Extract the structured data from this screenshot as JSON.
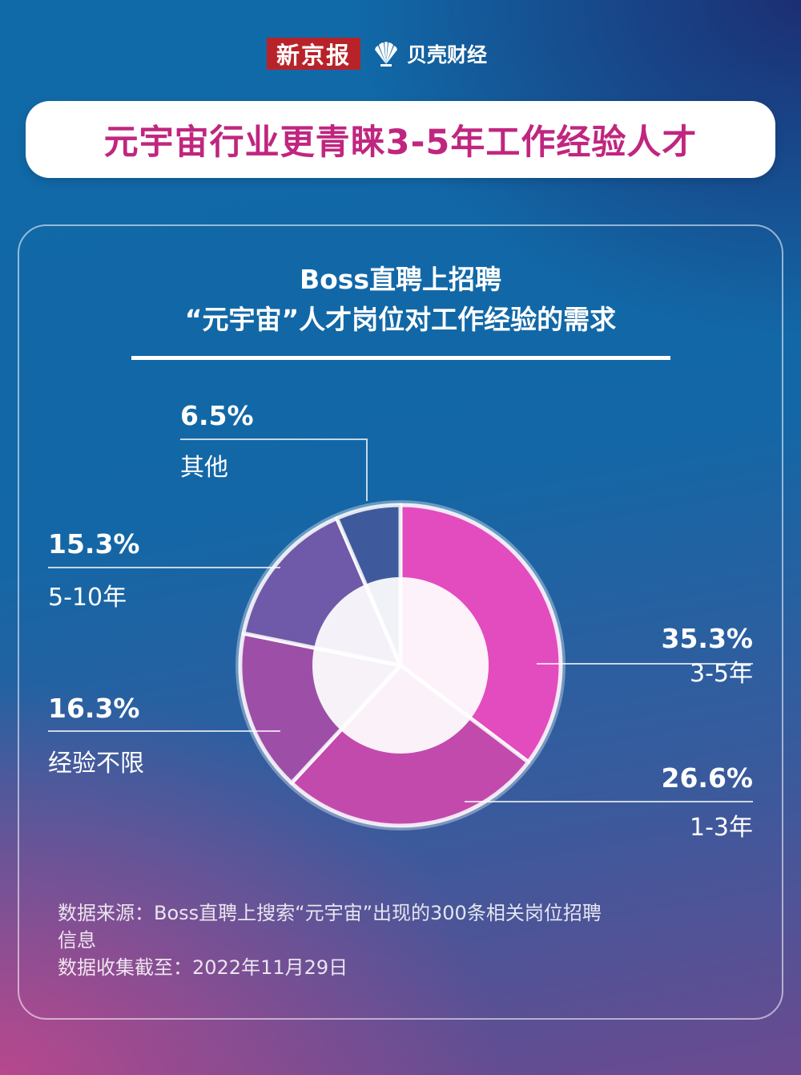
{
  "header": {
    "logo_xjb": "新京报",
    "logo_bk": "贝壳财经",
    "headline": "元宇宙行业更青睐3-5年工作经验人才"
  },
  "chart_data": {
    "type": "pie",
    "title_line1": "Boss直聘上招聘",
    "title_line2": "“元宇宙”人才岗位对工作经验的需求",
    "categories": [
      "3-5年",
      "1-3年",
      "经验不限",
      "5-10年",
      "其他"
    ],
    "values": [
      35.3,
      26.6,
      16.3,
      15.3,
      6.5
    ],
    "value_labels": [
      "35.3%",
      "26.6%",
      "16.3%",
      "15.3%",
      "6.5%"
    ],
    "colors": [
      "#e24cbf",
      "#c34aad",
      "#9d4fa8",
      "#6e5aa8",
      "#3f5a9c"
    ]
  },
  "source": {
    "line1": "数据来源：Boss直聘上搜索“元宇宙”出现的300条相关岗位招聘",
    "line2": "信息",
    "line3": "数据收集截至：2022年11月29日"
  }
}
